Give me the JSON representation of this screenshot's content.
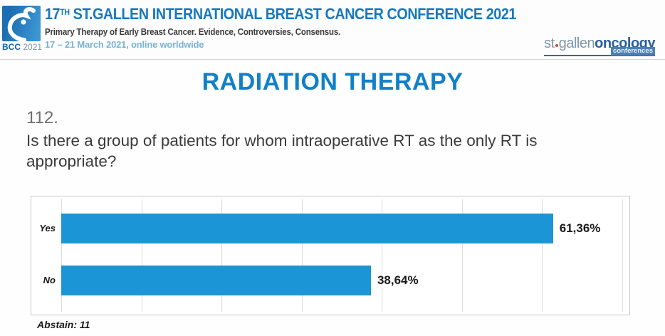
{
  "header": {
    "logo": {
      "bcc": "BCC",
      "year": "2021"
    },
    "title_prefix": "17",
    "title_superscript": "TH",
    "title_rest": " ST.GALLEN INTERNATIONAL BREAST CANCER CONFERENCE 2021",
    "subtitle": "Primary Therapy of Early Breast Cancer. Evidence, Controversies, Consensus.",
    "dates": "17 – 21 March 2021, online worldwide",
    "right_logo": {
      "part1": "st",
      "part2": "gallen",
      "part3": "oncology",
      "part4": "conferences"
    }
  },
  "section_title": "RADIATION THERAPY",
  "question": {
    "number": "112.",
    "text": "Is there a group of patients for whom intraoperative RT as the only RT is appropriate?"
  },
  "chart_data": {
    "type": "bar",
    "orientation": "horizontal",
    "title": "",
    "categories": [
      "Yes",
      "No"
    ],
    "values": [
      61.36,
      38.64
    ],
    "value_labels": [
      "61,36%",
      "38,64%"
    ],
    "xlim": [
      0,
      72.5
    ],
    "gridline_step": 10,
    "grid": true,
    "legend": false,
    "bar_color": "#1b95d5"
  },
  "footer": {
    "abstain": "Abstain: 11"
  },
  "colors": {
    "accent_blue": "#1878be",
    "section_title_blue": "#1180c7",
    "bar_blue": "#1b95d5",
    "dates_blue": "#79b2d8",
    "logo_blue": "#1d6db2"
  }
}
